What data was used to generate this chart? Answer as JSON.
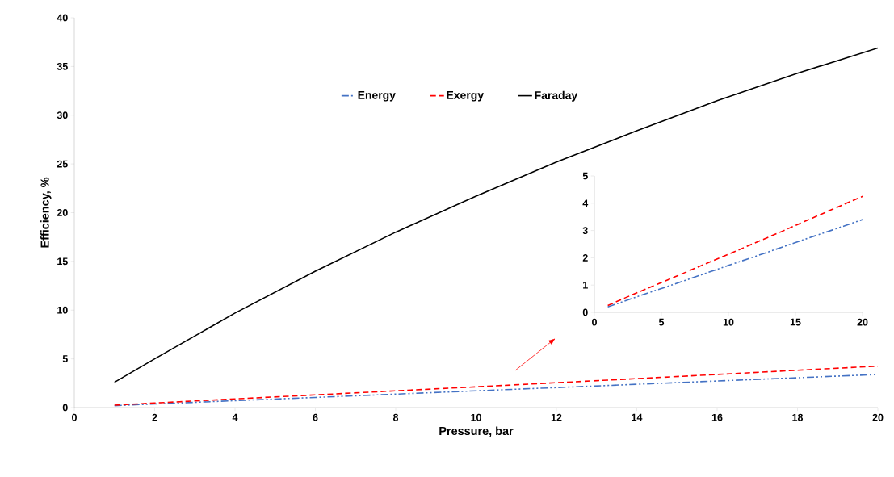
{
  "chart_data": [
    {
      "type": "line",
      "xlabel": "Pressure, bar",
      "ylabel": "Efficiency, %",
      "xlim": [
        0,
        20
      ],
      "ylim": [
        0,
        40
      ],
      "xticks": [
        0,
        2,
        4,
        6,
        8,
        10,
        12,
        14,
        16,
        18,
        20
      ],
      "yticks": [
        0,
        5,
        10,
        15,
        20,
        25,
        30,
        35,
        40
      ],
      "legend": "top",
      "marker": "none",
      "grid": false,
      "x": [
        1,
        2,
        4,
        6,
        8,
        10,
        12,
        14,
        16,
        18,
        20
      ],
      "series": [
        {
          "name": "Energy",
          "color": "#4472c4",
          "line_style": "dashdot",
          "values": [
            0.2,
            0.37,
            0.71,
            1.04,
            1.38,
            1.72,
            2.05,
            2.39,
            2.73,
            3.06,
            3.4
          ]
        },
        {
          "name": "Exergy",
          "color": "#ff0000",
          "line_style": "dashed",
          "values": [
            0.25,
            0.47,
            0.89,
            1.3,
            1.72,
            2.13,
            2.55,
            2.97,
            3.4,
            3.83,
            4.25
          ]
        },
        {
          "name": "Faraday",
          "color": "#000000",
          "line_style": "solid",
          "values": [
            2.6,
            5.0,
            9.7,
            14.0,
            18.0,
            21.7,
            25.2,
            28.4,
            31.5,
            34.3,
            36.9
          ]
        }
      ]
    },
    {
      "type": "line",
      "xlim": [
        0,
        20
      ],
      "ylim": [
        0,
        5
      ],
      "xticks": [
        0,
        5,
        10,
        15,
        20
      ],
      "yticks": [
        0,
        1,
        2,
        3,
        4,
        5
      ],
      "marker": "none",
      "grid": false,
      "x": [
        1,
        2,
        4,
        6,
        8,
        10,
        12,
        14,
        16,
        18,
        20
      ],
      "series": [
        {
          "color": "#4472c4",
          "line_style": "dashdot",
          "values": [
            0.2,
            0.37,
            0.71,
            1.04,
            1.38,
            1.72,
            2.05,
            2.39,
            2.73,
            3.06,
            3.4
          ]
        },
        {
          "color": "#ff0000",
          "line_style": "dashed",
          "values": [
            0.25,
            0.47,
            0.89,
            1.3,
            1.72,
            2.13,
            2.55,
            2.97,
            3.4,
            3.83,
            4.25
          ]
        }
      ]
    }
  ]
}
